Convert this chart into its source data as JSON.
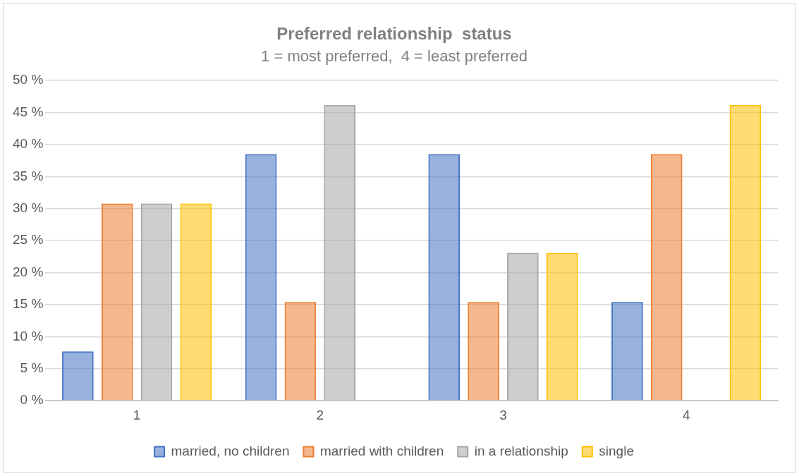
{
  "chart_data": {
    "type": "bar",
    "title": "Preferred relationship  status",
    "subtitle": "1 = most preferred,  4 = least preferred",
    "categories": [
      "1",
      "2",
      "3",
      "4"
    ],
    "series": [
      {
        "name": "married, no children",
        "color": "#4472c4",
        "values": [
          7.7,
          38.5,
          38.5,
          15.4
        ]
      },
      {
        "name": "married with children",
        "color": "#ed7d31",
        "values": [
          30.8,
          15.4,
          15.4,
          38.5
        ]
      },
      {
        "name": "in a relationship",
        "color": "#a5a5a5",
        "values": [
          30.8,
          46.2,
          23.1,
          0
        ]
      },
      {
        "name": "single",
        "color": "#ffc000",
        "values": [
          30.8,
          0,
          23.1,
          46.2
        ]
      }
    ],
    "ylim": [
      0,
      50
    ],
    "yticks": [
      {
        "value": 0,
        "label": "0 %"
      },
      {
        "value": 5,
        "label": "5 %"
      },
      {
        "value": 10,
        "label": "10 %"
      },
      {
        "value": 15,
        "label": "15 %"
      },
      {
        "value": 20,
        "label": "20 %"
      },
      {
        "value": 25,
        "label": "25 %"
      },
      {
        "value": 30,
        "label": "30 %"
      },
      {
        "value": 35,
        "label": "35 %"
      },
      {
        "value": 40,
        "label": "40 %"
      },
      {
        "value": 45,
        "label": "45 %"
      },
      {
        "value": 50,
        "label": "50 %"
      }
    ],
    "grid": "y",
    "legend": "bottom"
  }
}
